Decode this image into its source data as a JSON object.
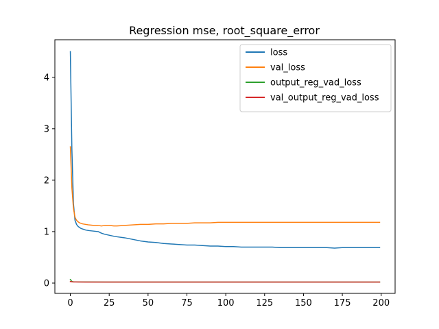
{
  "chart_data": {
    "type": "line",
    "title": "Regression mse, root_square_error",
    "xlabel": "",
    "ylabel": "",
    "xlim": [
      -9.95,
      208.95
    ],
    "ylim": [
      -0.2,
      4.73
    ],
    "xticks": [
      0,
      25,
      50,
      75,
      100,
      125,
      150,
      175,
      200
    ],
    "yticks": [
      0,
      1,
      2,
      3,
      4
    ],
    "legend_position": "top-right",
    "grid": false,
    "series": [
      {
        "name": "loss",
        "color": "#1f77b4",
        "x": [
          0,
          1,
          2,
          3,
          4,
          5,
          6,
          7,
          8,
          10,
          12,
          15,
          18,
          20,
          22,
          25,
          28,
          30,
          35,
          40,
          45,
          50,
          55,
          60,
          65,
          70,
          75,
          80,
          85,
          90,
          95,
          100,
          105,
          110,
          115,
          120,
          125,
          130,
          135,
          140,
          145,
          150,
          155,
          160,
          165,
          170,
          175,
          180,
          185,
          190,
          195,
          199
        ],
        "y": [
          4.5,
          2.6,
          1.55,
          1.22,
          1.14,
          1.1,
          1.08,
          1.06,
          1.05,
          1.03,
          1.02,
          1.01,
          1.0,
          0.97,
          0.95,
          0.93,
          0.91,
          0.9,
          0.88,
          0.85,
          0.82,
          0.8,
          0.79,
          0.77,
          0.76,
          0.75,
          0.74,
          0.74,
          0.73,
          0.72,
          0.72,
          0.71,
          0.71,
          0.7,
          0.7,
          0.7,
          0.7,
          0.7,
          0.69,
          0.69,
          0.69,
          0.69,
          0.69,
          0.69,
          0.69,
          0.68,
          0.69,
          0.69,
          0.69,
          0.69,
          0.69,
          0.69
        ]
      },
      {
        "name": "val_loss",
        "color": "#ff7f0e",
        "x": [
          0,
          1,
          2,
          3,
          4,
          5,
          6,
          7,
          8,
          10,
          12,
          15,
          18,
          20,
          22,
          25,
          28,
          30,
          35,
          40,
          45,
          50,
          55,
          60,
          65,
          70,
          75,
          80,
          85,
          90,
          95,
          100,
          105,
          110,
          115,
          120,
          125,
          130,
          135,
          140,
          145,
          150,
          155,
          160,
          165,
          170,
          175,
          180,
          185,
          190,
          195,
          199
        ],
        "y": [
          2.65,
          1.85,
          1.45,
          1.28,
          1.22,
          1.19,
          1.17,
          1.16,
          1.15,
          1.14,
          1.13,
          1.12,
          1.12,
          1.11,
          1.12,
          1.12,
          1.11,
          1.11,
          1.12,
          1.13,
          1.14,
          1.14,
          1.15,
          1.15,
          1.16,
          1.16,
          1.16,
          1.17,
          1.17,
          1.17,
          1.18,
          1.18,
          1.18,
          1.18,
          1.18,
          1.18,
          1.18,
          1.18,
          1.18,
          1.18,
          1.18,
          1.18,
          1.18,
          1.18,
          1.18,
          1.18,
          1.18,
          1.18,
          1.18,
          1.18,
          1.18,
          1.18
        ]
      },
      {
        "name": "output_reg_vad_loss",
        "color": "#2ca02c",
        "x": [
          0,
          1,
          2,
          5,
          10,
          25,
          50,
          75,
          100,
          125,
          150,
          175,
          199
        ],
        "y": [
          0.07,
          0.03,
          0.025,
          0.022,
          0.021,
          0.02,
          0.02,
          0.019,
          0.019,
          0.019,
          0.019,
          0.019,
          0.019
        ]
      },
      {
        "name": "val_output_reg_vad_loss",
        "color": "#d62728",
        "x": [
          0,
          1,
          2,
          5,
          10,
          25,
          50,
          75,
          100,
          125,
          150,
          175,
          199
        ],
        "y": [
          0.03,
          0.025,
          0.022,
          0.021,
          0.02,
          0.02,
          0.02,
          0.02,
          0.02,
          0.02,
          0.02,
          0.02,
          0.02
        ]
      }
    ]
  }
}
